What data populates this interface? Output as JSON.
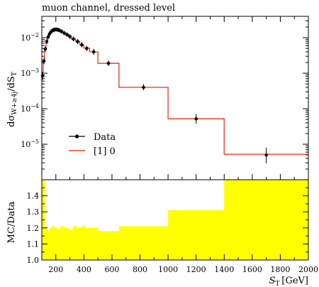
{
  "chart_data": [
    {
      "type": "line",
      "title": "muon channel, dressed level",
      "ylabel_main": "dσ",
      "ylabel_sub": "W+≥4j",
      "ylabel_tail": "/dS",
      "ylabel_tail_sub": "T",
      "yscale": "log",
      "xlim": [
        100,
        2000
      ],
      "ylim": [
        1e-06,
        0.04
      ],
      "yticks": [
        {
          "value": 1e-05,
          "base": "10",
          "exp": "−5"
        },
        {
          "value": 0.0001,
          "base": "10",
          "exp": "−4"
        },
        {
          "value": 0.001,
          "base": "10",
          "exp": "−3"
        },
        {
          "value": 0.01,
          "base": "10",
          "exp": "−2"
        }
      ],
      "legend": {
        "position": "lower-left",
        "entries": [
          "Data",
          "[1] 0"
        ]
      },
      "series": [
        {
          "name": "Data",
          "style": "points",
          "color": "#000000",
          "points": [
            {
              "x": 105,
              "y": 0.00085,
              "lo": 0.00065,
              "hi": 0.0011
            },
            {
              "x": 115,
              "y": 0.0022,
              "lo": 0.0018,
              "hi": 0.0027
            },
            {
              "x": 125,
              "y": 0.0048,
              "lo": 0.004,
              "hi": 0.0058
            },
            {
              "x": 135,
              "y": 0.0078,
              "lo": 0.0066,
              "hi": 0.0092
            },
            {
              "x": 145,
              "y": 0.0105,
              "lo": 0.009,
              "hi": 0.0122
            },
            {
              "x": 155,
              "y": 0.0128,
              "lo": 0.011,
              "hi": 0.0148
            },
            {
              "x": 165,
              "y": 0.0145,
              "lo": 0.0125,
              "hi": 0.0168
            },
            {
              "x": 175,
              "y": 0.0158,
              "lo": 0.0137,
              "hi": 0.0182
            },
            {
              "x": 185,
              "y": 0.0166,
              "lo": 0.0144,
              "hi": 0.0191
            },
            {
              "x": 195,
              "y": 0.017,
              "lo": 0.0148,
              "hi": 0.0196
            },
            {
              "x": 205,
              "y": 0.017,
              "lo": 0.0148,
              "hi": 0.0196
            },
            {
              "x": 215,
              "y": 0.0167,
              "lo": 0.0145,
              "hi": 0.0192
            },
            {
              "x": 225,
              "y": 0.0162,
              "lo": 0.0141,
              "hi": 0.0186
            },
            {
              "x": 240,
              "y": 0.015,
              "lo": 0.013,
              "hi": 0.0173
            },
            {
              "x": 260,
              "y": 0.0135,
              "lo": 0.0117,
              "hi": 0.0156
            },
            {
              "x": 280,
              "y": 0.0122,
              "lo": 0.0105,
              "hi": 0.0141
            },
            {
              "x": 300,
              "y": 0.0108,
              "lo": 0.0093,
              "hi": 0.0126
            },
            {
              "x": 325,
              "y": 0.0092,
              "lo": 0.0079,
              "hi": 0.0108
            },
            {
              "x": 355,
              "y": 0.0078,
              "lo": 0.0066,
              "hi": 0.0092
            },
            {
              "x": 385,
              "y": 0.0063,
              "lo": 0.0053,
              "hi": 0.0075
            },
            {
              "x": 420,
              "y": 0.005,
              "lo": 0.0042,
              "hi": 0.006
            },
            {
              "x": 470,
              "y": 0.004,
              "lo": 0.0033,
              "hi": 0.0049
            },
            {
              "x": 575,
              "y": 0.0019,
              "lo": 0.0016,
              "hi": 0.0023
            },
            {
              "x": 825,
              "y": 0.0004,
              "lo": 0.00033,
              "hi": 0.00049
            },
            {
              "x": 1200,
              "y": 5.2e-05,
              "lo": 3.8e-05,
              "hi": 7e-05
            },
            {
              "x": 1700,
              "y": 5e-06,
              "lo": 2.9e-06,
              "hi": 8e-06
            }
          ]
        },
        {
          "name": "[1] 0",
          "style": "step",
          "color": "#e8442c",
          "bins": [
            {
              "x0": 100,
              "x1": 110,
              "y": 0.0009
            },
            {
              "x0": 110,
              "x1": 120,
              "y": 0.0023
            },
            {
              "x0": 120,
              "x1": 130,
              "y": 0.005
            },
            {
              "x0": 130,
              "x1": 140,
              "y": 0.008
            },
            {
              "x0": 140,
              "x1": 150,
              "y": 0.0107
            },
            {
              "x0": 150,
              "x1": 160,
              "y": 0.013
            },
            {
              "x0": 160,
              "x1": 170,
              "y": 0.0146
            },
            {
              "x0": 170,
              "x1": 180,
              "y": 0.0158
            },
            {
              "x0": 180,
              "x1": 190,
              "y": 0.0166
            },
            {
              "x0": 190,
              "x1": 200,
              "y": 0.017
            },
            {
              "x0": 200,
              "x1": 210,
              "y": 0.017
            },
            {
              "x0": 210,
              "x1": 220,
              "y": 0.0167
            },
            {
              "x0": 220,
              "x1": 230,
              "y": 0.0162
            },
            {
              "x0": 230,
              "x1": 250,
              "y": 0.015
            },
            {
              "x0": 250,
              "x1": 270,
              "y": 0.0136
            },
            {
              "x0": 270,
              "x1": 290,
              "y": 0.0122
            },
            {
              "x0": 290,
              "x1": 310,
              "y": 0.0108
            },
            {
              "x0": 310,
              "x1": 340,
              "y": 0.0093
            },
            {
              "x0": 340,
              "x1": 370,
              "y": 0.0079
            },
            {
              "x0": 370,
              "x1": 400,
              "y": 0.0064
            },
            {
              "x0": 400,
              "x1": 440,
              "y": 0.0051
            },
            {
              "x0": 440,
              "x1": 500,
              "y": 0.004
            },
            {
              "x0": 500,
              "x1": 650,
              "y": 0.0019
            },
            {
              "x0": 650,
              "x1": 1000,
              "y": 0.0004
            },
            {
              "x0": 1000,
              "x1": 1400,
              "y": 5.2e-05
            },
            {
              "x0": 1400,
              "x1": 2000,
              "y": 5.2e-06
            }
          ]
        }
      ]
    },
    {
      "type": "area",
      "ylabel": "MC/Data",
      "xlabel_main": "S",
      "xlabel_sub": "T",
      "xlabel_tail": "[GeV]",
      "xlim": [
        100,
        2000
      ],
      "ylim": [
        1.0,
        1.5
      ],
      "xticks": [
        200,
        400,
        600,
        800,
        1000,
        1200,
        1400,
        1600,
        1800,
        2000
      ],
      "yticks": [
        "1.0",
        "1.1",
        "1.2",
        "1.3",
        "1.4"
      ],
      "band_color": "#ffff00",
      "band": [
        {
          "x0": 100,
          "x1": 120,
          "y": 1.5
        },
        {
          "x0": 120,
          "x1": 130,
          "y": 1.21
        },
        {
          "x0": 130,
          "x1": 140,
          "y": 1.19
        },
        {
          "x0": 140,
          "x1": 150,
          "y": 1.18
        },
        {
          "x0": 150,
          "x1": 160,
          "y": 1.19
        },
        {
          "x0": 160,
          "x1": 175,
          "y": 1.2
        },
        {
          "x0": 175,
          "x1": 190,
          "y": 1.21
        },
        {
          "x0": 190,
          "x1": 210,
          "y": 1.2
        },
        {
          "x0": 210,
          "x1": 230,
          "y": 1.19
        },
        {
          "x0": 230,
          "x1": 260,
          "y": 1.21
        },
        {
          "x0": 260,
          "x1": 290,
          "y": 1.2
        },
        {
          "x0": 290,
          "x1": 320,
          "y": 1.19
        },
        {
          "x0": 320,
          "x1": 350,
          "y": 1.21
        },
        {
          "x0": 350,
          "x1": 380,
          "y": 1.2
        },
        {
          "x0": 380,
          "x1": 410,
          "y": 1.21
        },
        {
          "x0": 410,
          "x1": 500,
          "y": 1.2
        },
        {
          "x0": 500,
          "x1": 650,
          "y": 1.18
        },
        {
          "x0": 650,
          "x1": 1000,
          "y": 1.21
        },
        {
          "x0": 1000,
          "x1": 1400,
          "y": 1.31
        },
        {
          "x0": 1400,
          "x1": 2000,
          "y": 1.5
        }
      ]
    }
  ]
}
